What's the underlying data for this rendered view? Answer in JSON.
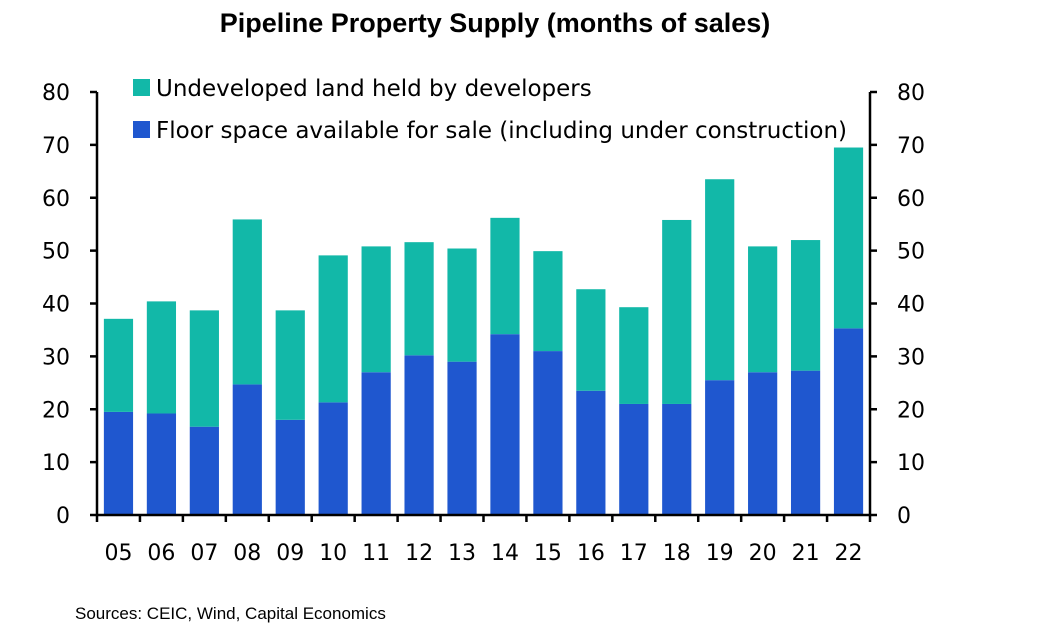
{
  "chart_data": {
    "type": "bar",
    "stacked": true,
    "title": "Pipeline Property Supply (months of sales)",
    "categories": [
      "05",
      "06",
      "07",
      "08",
      "09",
      "10",
      "11",
      "12",
      "13",
      "14",
      "15",
      "16",
      "17",
      "18",
      "19",
      "20",
      "21",
      "22"
    ],
    "series": [
      {
        "name": "Floor space available for sale (including under construction)",
        "color": "#1f57cf",
        "values": [
          19.5,
          19.2,
          16.7,
          24.7,
          18.0,
          21.3,
          27.0,
          30.2,
          29.0,
          34.2,
          31.0,
          23.5,
          21.0,
          21.0,
          25.5,
          27.0,
          27.3,
          35.3
        ]
      },
      {
        "name": "Undeveloped land held by developers",
        "color": "#12b8a8",
        "values": [
          17.6,
          21.2,
          22.0,
          31.2,
          20.7,
          27.8,
          23.8,
          21.4,
          21.4,
          22.0,
          18.9,
          19.2,
          18.3,
          34.8,
          38.0,
          23.8,
          24.7,
          34.2
        ]
      }
    ],
    "ylim": [
      0,
      80
    ],
    "yticks": [
      0,
      10,
      20,
      30,
      40,
      50,
      60,
      70,
      80
    ],
    "secondary_yticks": [
      0,
      10,
      20,
      30,
      40,
      50,
      60,
      70,
      80
    ],
    "xlabel": "",
    "ylabel": "",
    "legend_position": "top-left"
  },
  "source_text": "Sources: CEIC, Wind, Capital Economics"
}
